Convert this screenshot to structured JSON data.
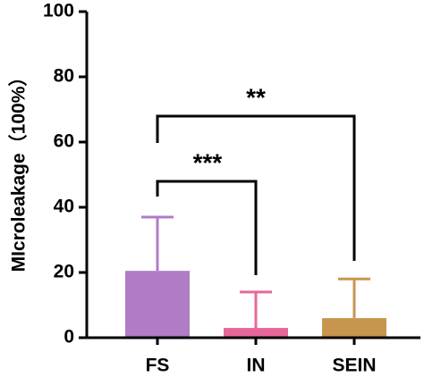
{
  "chart_data": {
    "type": "bar",
    "y_label": "MIcroleakage（100%）",
    "categories": [
      "FS",
      "IN",
      "SEIN"
    ],
    "values": [
      20.5,
      3,
      6
    ],
    "errors": [
      16.5,
      11,
      12
    ],
    "colors": [
      "#b07cc6",
      "#e8679a",
      "#c8954f"
    ],
    "ylim": [
      0,
      100
    ],
    "yticks": [
      0,
      20,
      40,
      60,
      80,
      100
    ],
    "annotations": [
      "***",
      "**"
    ]
  }
}
